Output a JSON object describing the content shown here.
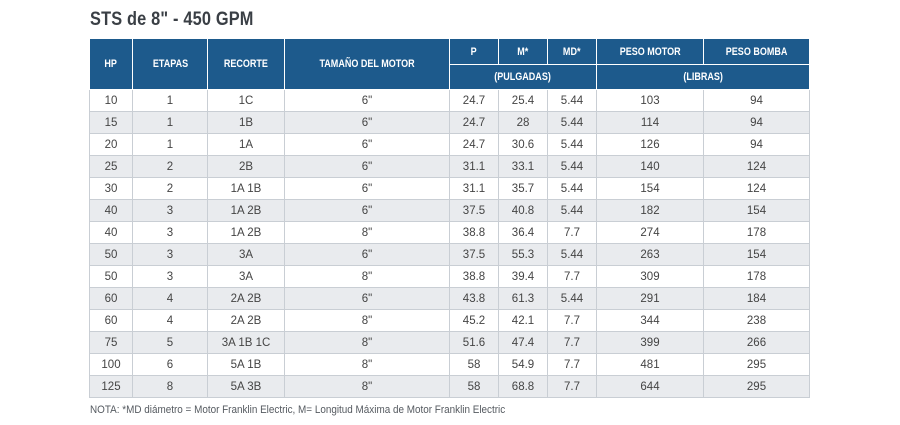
{
  "title": "STS de 8\" - 450 GPM",
  "headers": {
    "hp": "HP",
    "etapas": "ETAPAS",
    "recorte": "RECORTE",
    "motor": "TAMAÑO DEL MOTOR",
    "p": "P",
    "m": "M*",
    "md": "MD*",
    "peso_motor": "PESO MOTOR",
    "peso_bomba": "PESO BOMBA",
    "pulgadas": "(PULGADAS)",
    "libras": "(LIBRAS)"
  },
  "rows": [
    [
      "10",
      "1",
      "1C",
      "6\"",
      "24.7",
      "25.4",
      "5.44",
      "103",
      "94"
    ],
    [
      "15",
      "1",
      "1B",
      "6\"",
      "24.7",
      "28",
      "5.44",
      "114",
      "94"
    ],
    [
      "20",
      "1",
      "1A",
      "6\"",
      "24.7",
      "30.6",
      "5.44",
      "126",
      "94"
    ],
    [
      "25",
      "2",
      "2B",
      "6\"",
      "31.1",
      "33.1",
      "5.44",
      "140",
      "124"
    ],
    [
      "30",
      "2",
      "1A 1B",
      "6\"",
      "31.1",
      "35.7",
      "5.44",
      "154",
      "124"
    ],
    [
      "40",
      "3",
      "1A 2B",
      "6\"",
      "37.5",
      "40.8",
      "5.44",
      "182",
      "154"
    ],
    [
      "40",
      "3",
      "1A 2B",
      "8\"",
      "38.8",
      "36.4",
      "7.7",
      "274",
      "178"
    ],
    [
      "50",
      "3",
      "3A",
      "6\"",
      "37.5",
      "55.3",
      "5.44",
      "263",
      "154"
    ],
    [
      "50",
      "3",
      "3A",
      "8\"",
      "38.8",
      "39.4",
      "7.7",
      "309",
      "178"
    ],
    [
      "60",
      "4",
      "2A 2B",
      "6\"",
      "43.8",
      "61.3",
      "5.44",
      "291",
      "184"
    ],
    [
      "60",
      "4",
      "2A 2B",
      "8\"",
      "45.2",
      "42.1",
      "7.7",
      "344",
      "238"
    ],
    [
      "75",
      "5",
      "3A 1B 1C",
      "8\"",
      "51.6",
      "47.4",
      "7.7",
      "399",
      "266"
    ],
    [
      "100",
      "6",
      "5A 1B",
      "8\"",
      "58",
      "54.9",
      "7.7",
      "481",
      "295"
    ],
    [
      "125",
      "8",
      "5A 3B",
      "8\"",
      "58",
      "68.8",
      "7.7",
      "644",
      "295"
    ]
  ],
  "note": "NOTA: *MD diámetro = Motor Franklin Electric, M= Longitud Máxima de Motor Franklin Electric"
}
